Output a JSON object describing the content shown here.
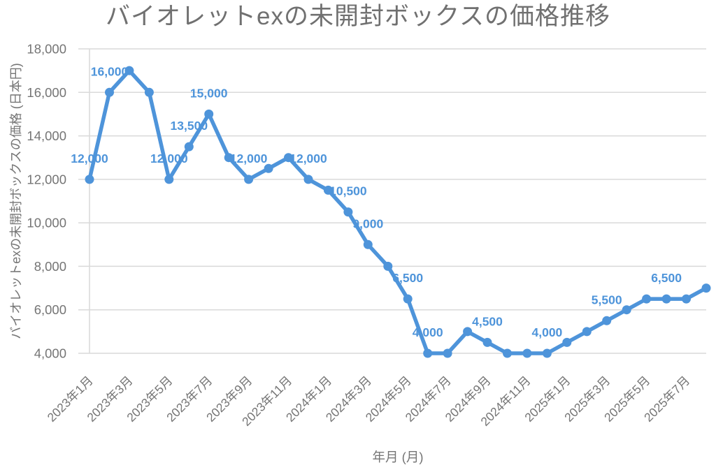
{
  "chart": {
    "title": "バイオレットexの未開封ボックスの価格推移"
  },
  "chart_data": {
    "type": "line",
    "title": "バイオレットexの未開封ボックスの価格推移",
    "xlabel": "年月 (月)",
    "ylabel": "バイオレットexの未開封ボックスの価格 (日本円)",
    "x": [
      "2023年1月",
      "2023年2月",
      "2023年3月",
      "2023年4月",
      "2023年5月",
      "2023年6月",
      "2023年7月",
      "2023年8月",
      "2023年9月",
      "2023年10月",
      "2023年11月",
      "2023年12月",
      "2024年1月",
      "2024年2月",
      "2024年3月",
      "2024年4月",
      "2024年5月",
      "2024年6月",
      "2024年7月",
      "2024年8月",
      "2024年9月",
      "2024年10月",
      "2024年11月",
      "2024年12月",
      "2025年1月",
      "2025年2月",
      "2025年3月",
      "2025年4月",
      "2025年5月",
      "2025年6月",
      "2025年7月",
      "2025年8月"
    ],
    "values": [
      12000,
      16000,
      17000,
      16000,
      12000,
      13500,
      15000,
      13000,
      12000,
      12500,
      13000,
      12000,
      11500,
      10500,
      9000,
      8000,
      6500,
      4000,
      4000,
      5000,
      4500,
      4000,
      4000,
      4000,
      4500,
      5000,
      5500,
      6000,
      6500,
      6500,
      6500,
      7000
    ],
    "x_tick_labels": [
      "2023年1月",
      "2023年3月",
      "2023年5月",
      "2023年7月",
      "2023年9月",
      "2023年11月",
      "2024年1月",
      "2024年3月",
      "2024年5月",
      "2024年7月",
      "2024年9月",
      "2024年11月",
      "2025年1月",
      "2025年3月",
      "2025年5月",
      "2025年7月"
    ],
    "y_ticks": [
      4000,
      6000,
      8000,
      10000,
      12000,
      14000,
      16000,
      18000
    ],
    "y_tick_labels": [
      "4,000",
      "6,000",
      "8,000",
      "10,000",
      "12,000",
      "14,000",
      "16,000",
      "18,000"
    ],
    "ylim": [
      4000,
      18000
    ],
    "grid": "horizontal",
    "legend": "none",
    "data_labels": [
      {
        "index": 0,
        "text": "12,000"
      },
      {
        "index": 1,
        "text": "16,000"
      },
      {
        "index": 4,
        "text": "12,000"
      },
      {
        "index": 5,
        "text": "13,500"
      },
      {
        "index": 6,
        "text": "15,000"
      },
      {
        "index": 8,
        "text": "12,000"
      },
      {
        "index": 11,
        "text": "12,000"
      },
      {
        "index": 13,
        "text": "10,500"
      },
      {
        "index": 14,
        "text": "9,000"
      },
      {
        "index": 16,
        "text": "6,500"
      },
      {
        "index": 17,
        "text": "4,000"
      },
      {
        "index": 20,
        "text": "4,500"
      },
      {
        "index": 23,
        "text": "4,000"
      },
      {
        "index": 26,
        "text": "5,500"
      },
      {
        "index": 29,
        "text": "6,500"
      }
    ],
    "colors": {
      "line": "#4E94DA",
      "marker": "#4E94DA",
      "data_label": "#4E94DA",
      "axis_text": "#757575",
      "title_text": "#707070",
      "gridline": "#D9D9D9"
    }
  }
}
